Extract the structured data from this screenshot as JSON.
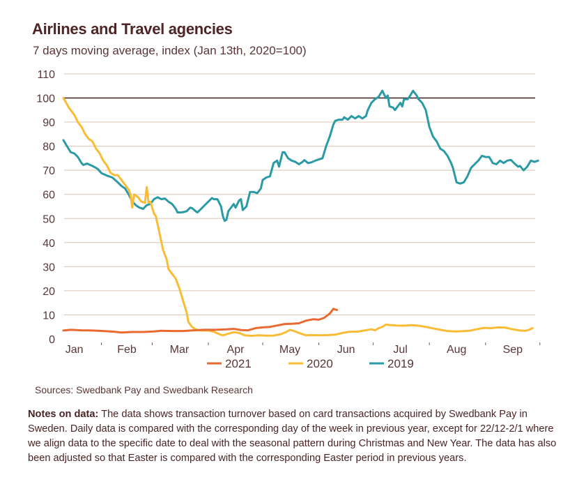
{
  "header": {
    "title": "Airlines and Travel agencies",
    "subtitle": "7 days moving average, index (Jan 13th, 2020=100)"
  },
  "footer": {
    "sources": "Sources: Swedbank Pay and Swedbank Research",
    "notes_label": "Notes on data:",
    "notes_text": " The data shows transaction turnover based on card transactions acquired by Swedbank Pay in Sweden. Daily data is compared with the corresponding day of the week in previous year, except for 22/12-2/1 where we align data to the specific date to deal with the seasonal pattern during Christmas and New Year. The data has also been adjusted so that Easter is compared with the corresponding Easter period in previous years."
  },
  "chart_data": {
    "type": "line",
    "title": "Airlines and Travel agencies",
    "subtitle": "7 days moving average, index (Jan 13th, 2020=100)",
    "xlabel": "",
    "ylabel": "",
    "x_unit": "day of year",
    "xlim": [
      10,
      272
    ],
    "ylim": [
      0,
      110
    ],
    "yticks": [
      0,
      10,
      20,
      30,
      40,
      50,
      60,
      70,
      80,
      90,
      100,
      110
    ],
    "xticks": [
      {
        "label": "Jan",
        "day": 16
      },
      {
        "label": "Feb",
        "day": 45
      },
      {
        "label": "Mar",
        "day": 74
      },
      {
        "label": "Apr",
        "day": 105
      },
      {
        "label": "May",
        "day": 135
      },
      {
        "label": "Jun",
        "day": 166
      },
      {
        "label": "Jul",
        "day": 196
      },
      {
        "label": "Aug",
        "day": 227
      },
      {
        "label": "Sep",
        "day": 258
      }
    ],
    "month_boundaries": [
      31,
      59,
      90,
      120,
      151,
      181,
      212,
      243,
      273
    ],
    "grid": true,
    "reference_line": 100,
    "legend_position": "bottom",
    "colors": {
      "2021": "#e86a30",
      "2020": "#fbbc35",
      "2019": "#2a9aa4",
      "grid": "#dcc3b3",
      "reference": "#3e1e1e"
    },
    "series": [
      {
        "name": "2021",
        "points": [
          [
            10,
            3.5
          ],
          [
            14,
            3.8
          ],
          [
            20,
            3.6
          ],
          [
            26,
            3.5
          ],
          [
            32,
            3.3
          ],
          [
            38,
            3.0
          ],
          [
            42,
            2.7
          ],
          [
            48,
            2.9
          ],
          [
            54,
            2.9
          ],
          [
            60,
            3.1
          ],
          [
            64,
            3.4
          ],
          [
            70,
            3.3
          ],
          [
            76,
            3.3
          ],
          [
            82,
            3.6
          ],
          [
            88,
            3.8
          ],
          [
            94,
            3.8
          ],
          [
            100,
            4.0
          ],
          [
            104,
            4.2
          ],
          [
            108,
            3.7
          ],
          [
            112,
            3.6
          ],
          [
            116,
            4.5
          ],
          [
            120,
            4.8
          ],
          [
            124,
            5.0
          ],
          [
            128,
            5.6
          ],
          [
            132,
            6.2
          ],
          [
            136,
            6.3
          ],
          [
            140,
            6.5
          ],
          [
            144,
            7.6
          ],
          [
            148,
            8.2
          ],
          [
            151,
            8.0
          ],
          [
            154,
            8.8
          ],
          [
            157,
            10.5
          ],
          [
            159,
            12.5
          ],
          [
            161,
            12.0
          ]
        ]
      },
      {
        "name": "2020",
        "points": [
          [
            10,
            100
          ],
          [
            13,
            96
          ],
          [
            16,
            93
          ],
          [
            18,
            90
          ],
          [
            20,
            88
          ],
          [
            22,
            85
          ],
          [
            24,
            83
          ],
          [
            26,
            82
          ],
          [
            28,
            79
          ],
          [
            30,
            77
          ],
          [
            32,
            74
          ],
          [
            34,
            72
          ],
          [
            36,
            69
          ],
          [
            38,
            68
          ],
          [
            40,
            68
          ],
          [
            42,
            66
          ],
          [
            44,
            64
          ],
          [
            46,
            62
          ],
          [
            47,
            60
          ],
          [
            48,
            54.5
          ],
          [
            49,
            60
          ],
          [
            51,
            59
          ],
          [
            53,
            57
          ],
          [
            55,
            56.5
          ],
          [
            56,
            63
          ],
          [
            57,
            56.5
          ],
          [
            58,
            57
          ],
          [
            60,
            52
          ],
          [
            61,
            51
          ],
          [
            63,
            44
          ],
          [
            65,
            37
          ],
          [
            67,
            33
          ],
          [
            68,
            29
          ],
          [
            70,
            27
          ],
          [
            72,
            25
          ],
          [
            74,
            21
          ],
          [
            76,
            16
          ],
          [
            78,
            11
          ],
          [
            79,
            7
          ],
          [
            81,
            5
          ],
          [
            83,
            4
          ],
          [
            86,
            3.5
          ],
          [
            90,
            3.5
          ],
          [
            93,
            3.0
          ],
          [
            96,
            2.0
          ],
          [
            98,
            1.5
          ],
          [
            101,
            2.2
          ],
          [
            104,
            2.8
          ],
          [
            107,
            2.5
          ],
          [
            110,
            1.5
          ],
          [
            114,
            1.3
          ],
          [
            118,
            1.5
          ],
          [
            122,
            1.4
          ],
          [
            126,
            1.4
          ],
          [
            130,
            2.0
          ],
          [
            133,
            2.9
          ],
          [
            135,
            3.8
          ],
          [
            137,
            3.4
          ],
          [
            140,
            2.5
          ],
          [
            144,
            1.5
          ],
          [
            148,
            1.6
          ],
          [
            152,
            1.5
          ],
          [
            156,
            1.6
          ],
          [
            160,
            1.8
          ],
          [
            164,
            2.5
          ],
          [
            168,
            3.0
          ],
          [
            172,
            3.0
          ],
          [
            176,
            3.5
          ],
          [
            180,
            4.0
          ],
          [
            182,
            3.6
          ],
          [
            184,
            4.5
          ],
          [
            186,
            5.0
          ],
          [
            188,
            6.0
          ],
          [
            190,
            5.8
          ],
          [
            194,
            5.6
          ],
          [
            198,
            5.5
          ],
          [
            202,
            5.7
          ],
          [
            206,
            5.5
          ],
          [
            210,
            5.0
          ],
          [
            214,
            4.4
          ],
          [
            218,
            3.8
          ],
          [
            222,
            3.3
          ],
          [
            226,
            3.1
          ],
          [
            230,
            3.2
          ],
          [
            234,
            3.4
          ],
          [
            238,
            4.0
          ],
          [
            242,
            4.6
          ],
          [
            246,
            4.5
          ],
          [
            250,
            4.8
          ],
          [
            254,
            4.7
          ],
          [
            258,
            4.0
          ],
          [
            262,
            3.5
          ],
          [
            265,
            3.4
          ],
          [
            267,
            3.8
          ],
          [
            269,
            4.5
          ]
        ]
      },
      {
        "name": "2019",
        "points": [
          [
            10,
            82.5
          ],
          [
            12,
            80
          ],
          [
            14,
            77.5
          ],
          [
            16,
            77
          ],
          [
            18,
            75.5
          ],
          [
            20,
            73
          ],
          [
            21,
            72.2
          ],
          [
            23,
            72.8
          ],
          [
            26,
            71.8
          ],
          [
            28,
            71
          ],
          [
            29,
            70.5
          ],
          [
            31,
            68.8
          ],
          [
            34,
            67.8
          ],
          [
            37,
            67
          ],
          [
            40,
            65
          ],
          [
            42,
            63.5
          ],
          [
            44,
            62.5
          ],
          [
            46,
            60
          ],
          [
            48,
            57
          ],
          [
            50,
            55.5
          ],
          [
            52,
            54.5
          ],
          [
            54,
            54
          ],
          [
            56,
            55.5
          ],
          [
            58,
            56
          ],
          [
            60,
            58
          ],
          [
            62,
            58.8
          ],
          [
            64,
            58
          ],
          [
            66,
            58.3
          ],
          [
            68,
            57
          ],
          [
            70,
            56
          ],
          [
            72,
            54
          ],
          [
            73,
            52.5
          ],
          [
            75,
            52.5
          ],
          [
            77,
            52.8
          ],
          [
            78,
            53
          ],
          [
            80,
            54.5
          ],
          [
            81,
            54.3
          ],
          [
            83,
            53
          ],
          [
            84,
            52.5
          ],
          [
            86,
            54
          ],
          [
            88,
            55.5
          ],
          [
            90,
            57
          ],
          [
            92,
            58.5
          ],
          [
            93,
            58
          ],
          [
            95,
            58
          ],
          [
            97,
            55
          ],
          [
            98,
            51
          ],
          [
            99,
            49
          ],
          [
            100,
            49.5
          ],
          [
            101,
            53
          ],
          [
            103,
            55
          ],
          [
            104,
            56
          ],
          [
            105,
            54.5
          ],
          [
            107,
            57.5
          ],
          [
            108,
            58
          ],
          [
            109,
            53.5
          ],
          [
            111,
            55
          ],
          [
            112,
            58
          ],
          [
            113,
            61
          ],
          [
            115,
            61
          ],
          [
            117,
            60.5
          ],
          [
            119,
            62.5
          ],
          [
            120,
            66
          ],
          [
            122,
            67
          ],
          [
            124,
            67.5
          ],
          [
            126,
            73
          ],
          [
            128,
            74
          ],
          [
            129,
            71.5
          ],
          [
            131,
            77.5
          ],
          [
            132,
            77.5
          ],
          [
            134,
            75
          ],
          [
            136,
            74
          ],
          [
            138,
            73.5
          ],
          [
            140,
            72.5
          ],
          [
            142,
            73.5
          ],
          [
            143,
            74.2
          ],
          [
            145,
            73
          ],
          [
            147,
            73.3
          ],
          [
            149,
            74
          ],
          [
            151,
            74.5
          ],
          [
            153,
            75
          ],
          [
            155,
            80
          ],
          [
            157,
            84
          ],
          [
            159,
            89
          ],
          [
            160,
            90.5
          ],
          [
            162,
            91
          ],
          [
            164,
            91
          ],
          [
            165,
            92
          ],
          [
            167,
            91
          ],
          [
            169,
            92.5
          ],
          [
            171,
            91.5
          ],
          [
            173,
            92.5
          ],
          [
            175,
            91.5
          ],
          [
            177,
            92.5
          ],
          [
            178,
            95
          ],
          [
            180,
            98
          ],
          [
            182,
            99.5
          ],
          [
            184,
            100.5
          ],
          [
            186,
            103
          ],
          [
            188,
            100
          ],
          [
            189,
            101
          ],
          [
            190,
            96.5
          ],
          [
            192,
            96
          ],
          [
            193,
            95
          ],
          [
            195,
            97
          ],
          [
            196,
            98
          ],
          [
            197,
            96.5
          ],
          [
            198,
            99.5
          ],
          [
            200,
            99.5
          ],
          [
            201,
            100.5
          ],
          [
            203,
            103
          ],
          [
            205,
            101
          ],
          [
            206,
            99.5
          ],
          [
            208,
            98
          ],
          [
            210,
            95
          ],
          [
            212,
            88
          ],
          [
            214,
            84
          ],
          [
            216,
            82
          ],
          [
            218,
            79
          ],
          [
            220,
            78
          ],
          [
            222,
            76
          ],
          [
            224,
            73
          ],
          [
            225,
            71
          ],
          [
            227,
            65
          ],
          [
            229,
            64.5
          ],
          [
            231,
            65
          ],
          [
            233,
            67.5
          ],
          [
            235,
            71
          ],
          [
            237,
            72.5
          ],
          [
            239,
            74
          ],
          [
            241,
            76
          ],
          [
            243,
            75.5
          ],
          [
            245,
            75.5
          ],
          [
            247,
            73
          ],
          [
            249,
            72.5
          ],
          [
            251,
            74
          ],
          [
            253,
            73
          ],
          [
            255,
            74
          ],
          [
            257,
            74.3
          ],
          [
            259,
            72.8
          ],
          [
            261,
            71.5
          ],
          [
            262,
            71.8
          ],
          [
            264,
            70
          ],
          [
            266,
            71.5
          ],
          [
            268,
            74
          ],
          [
            270,
            73.5
          ],
          [
            272,
            74
          ]
        ]
      }
    ]
  }
}
